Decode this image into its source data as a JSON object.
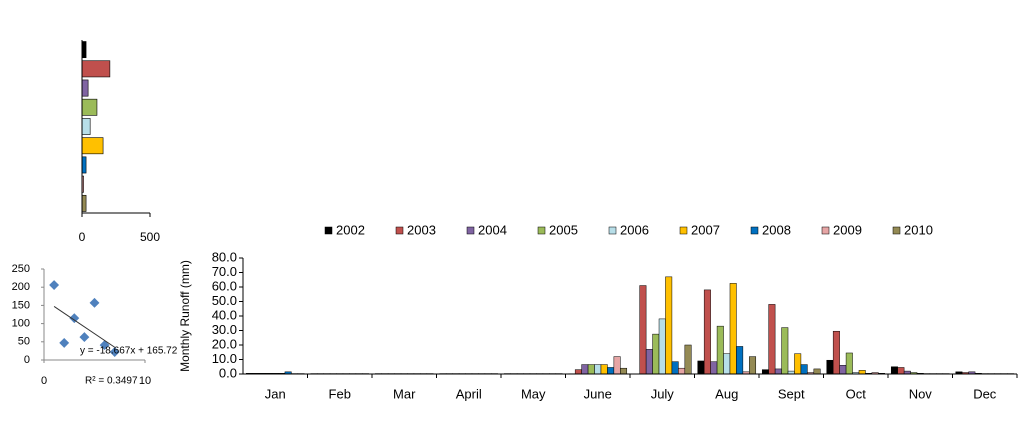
{
  "chart_data": [
    {
      "type": "bar",
      "orientation": "horizontal",
      "categories": [
        null,
        null,
        null,
        null,
        null,
        null,
        null,
        null,
        null
      ],
      "values": [
        30,
        205,
        45,
        110,
        60,
        155,
        30,
        12,
        30
      ],
      "colors": [
        "#000000",
        "#c0504d",
        "#8064a2",
        "#9bbb59",
        "#b7dee8",
        "#ffc000",
        "#0070c0",
        "#e6a5a5",
        "#948a54"
      ],
      "xlim": [
        0,
        500
      ],
      "xticks": [
        0,
        500
      ]
    },
    {
      "type": "scatter",
      "x": [
        1,
        2,
        3,
        4,
        5,
        6,
        7
      ],
      "values": [
        206,
        47,
        115,
        63,
        157,
        41,
        22
      ],
      "color": "#4f81bd",
      "xlim": [
        0,
        10
      ],
      "xticks": [
        0,
        10
      ],
      "ylim": [
        0,
        250
      ],
      "yticks": [
        0,
        50,
        100,
        150,
        200,
        250
      ],
      "trendline": {
        "label": "y = -18.667x + 165.72",
        "slope": -18.667,
        "intercept": 165.72
      },
      "annotations": [
        "R² = 0.3497"
      ]
    },
    {
      "type": "grouped-bar",
      "y_label": "Monthly  Runoff (mm)",
      "categories": [
        "Jan",
        "Feb",
        "Mar",
        "April",
        "May",
        "June",
        "July",
        "Aug",
        "Sept",
        "Oct",
        "Nov",
        "Dec"
      ],
      "legend": "top",
      "ylim": [
        0,
        80
      ],
      "yticks": [
        {
          "value": 0,
          "label": "0.0"
        },
        {
          "value": 10,
          "label": "10.0"
        },
        {
          "value": 20,
          "label": "20.0"
        },
        {
          "value": 30,
          "label": "30.0"
        },
        {
          "value": 40,
          "label": "40.0"
        },
        {
          "value": 50,
          "label": "50.0"
        },
        {
          "value": 60,
          "label": "60.0"
        },
        {
          "value": 70,
          "label": "70.0"
        },
        {
          "value": 80,
          "label": "80.0"
        }
      ],
      "series": [
        {
          "name": "2002",
          "color": "#000000",
          "values": [
            0.5,
            0.3,
            0.3,
            0.3,
            0.3,
            0.2,
            0,
            9,
            3,
            9.5,
            5,
            1.5
          ]
        },
        {
          "name": "2003",
          "color": "#c0504d",
          "values": [
            0.5,
            0.3,
            0.3,
            0.3,
            0.3,
            3,
            61,
            58,
            48,
            29.5,
            4.5,
            1
          ]
        },
        {
          "name": "2004",
          "color": "#8064a2",
          "values": [
            0.5,
            0.3,
            0.3,
            0.3,
            0.3,
            6.5,
            17,
            8.5,
            3.5,
            6,
            2,
            1.5
          ]
        },
        {
          "name": "2005",
          "color": "#9bbb59",
          "values": [
            0.5,
            0.3,
            0.3,
            0.3,
            0.3,
            6.5,
            27.5,
            33,
            32,
            14.5,
            1,
            0.5
          ]
        },
        {
          "name": "2006",
          "color": "#b7dee8",
          "values": [
            0.5,
            0.3,
            0.3,
            0.3,
            0.3,
            6.5,
            38,
            14,
            2,
            1,
            0.5,
            0.3
          ]
        },
        {
          "name": "2007",
          "color": "#ffc000",
          "values": [
            0.5,
            0.3,
            0.3,
            0.3,
            0.3,
            6.5,
            67,
            62.5,
            14,
            2.5,
            0.3,
            0.3
          ]
        },
        {
          "name": "2008",
          "color": "#0070c0",
          "values": [
            1.5,
            0.3,
            0.3,
            0.3,
            0.3,
            4.5,
            8.5,
            19,
            6.5,
            0.5,
            0.3,
            0.3
          ]
        },
        {
          "name": "2009",
          "color": "#e6a5a5",
          "values": [
            0.3,
            0.3,
            0.3,
            0.3,
            0.3,
            12,
            4,
            1.5,
            1,
            1,
            0.3,
            0.3
          ]
        },
        {
          "name": "2010",
          "color": "#948a54",
          "values": [
            0.3,
            0.3,
            0.3,
            0.3,
            0.3,
            4,
            20,
            12,
            3.5,
            0.5,
            0.3,
            0.3
          ]
        }
      ]
    }
  ]
}
